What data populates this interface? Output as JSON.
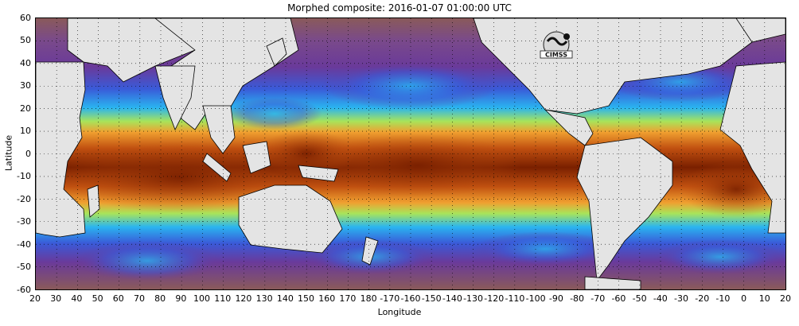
{
  "title": "Morphed composite: 2016-01-07 01:00:00 UTC",
  "logo_text": "CIMSS",
  "chart_data": {
    "type": "heatmap",
    "title": "Morphed composite: 2016-01-07 01:00:00 UTC",
    "xlabel": "Longitude",
    "ylabel": "Latitude",
    "x_ticks": [
      "20",
      "30",
      "40",
      "50",
      "60",
      "70",
      "80",
      "90",
      "100",
      "110",
      "120",
      "130",
      "140",
      "150",
      "160",
      "170",
      "180",
      "-170",
      "-160",
      "-150",
      "-140",
      "-130",
      "-120",
      "-110",
      "-100",
      "-90",
      "-80",
      "-70",
      "-60",
      "-50",
      "-40",
      "-30",
      "-20",
      "-10",
      "0",
      "10",
      "20"
    ],
    "y_ticks": [
      "60",
      "50",
      "40",
      "30",
      "20",
      "10",
      "0",
      "-10",
      "-20",
      "-30",
      "-40",
      "-50",
      "-60"
    ],
    "xlim": [
      20,
      380
    ],
    "ylim": [
      -60,
      60
    ],
    "grid": "dotted",
    "colors": {
      "land": "#e4e4e4",
      "very_dry": "#8a5a5a",
      "dry": "#6a3a9a",
      "low": "#3a5ad8",
      "mid": "#2ab4f0",
      "moist": "#a8e45a",
      "wet": "#f0a030",
      "very_wet": "#c05010",
      "wettest": "#7a2000"
    }
  }
}
